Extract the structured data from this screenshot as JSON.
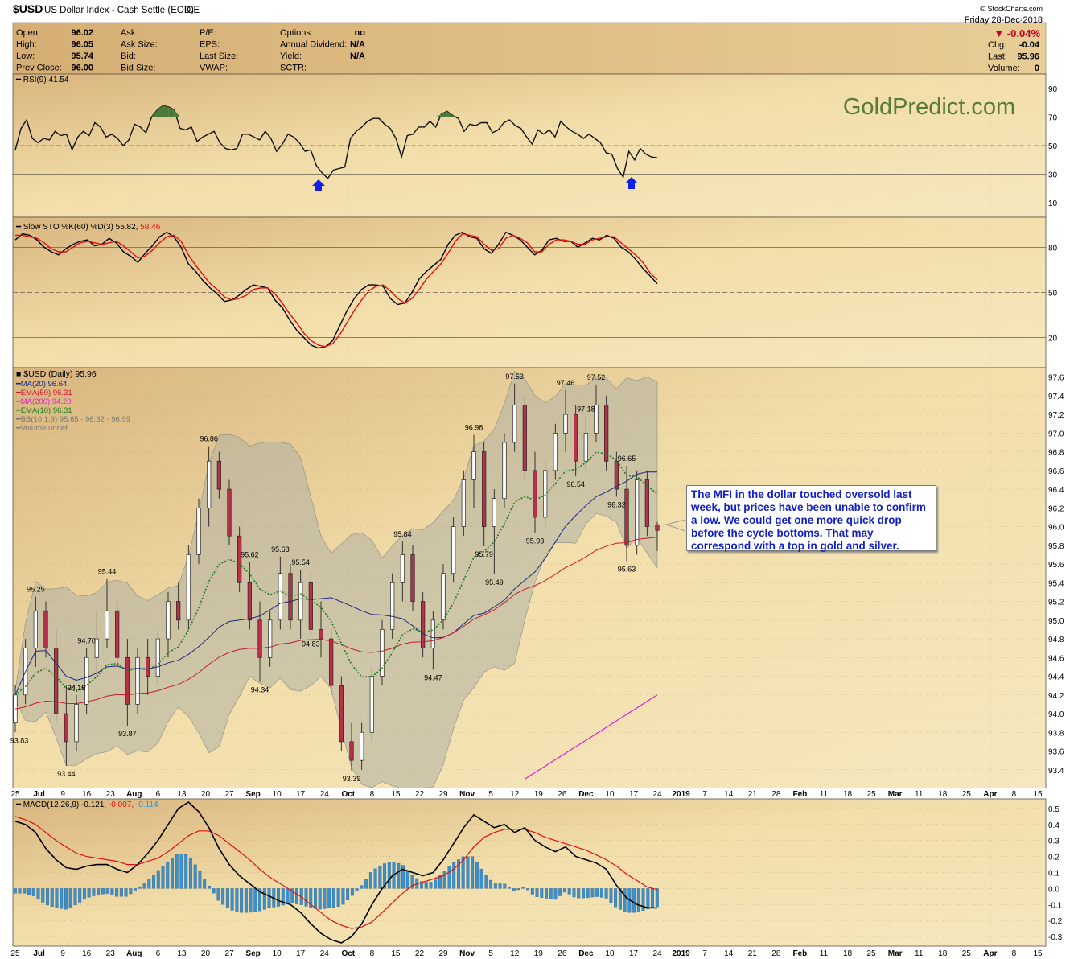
{
  "header": {
    "symbol": "$USD",
    "description": "US Dollar Index - Cash Settle (EOD)",
    "exchange": "ICE",
    "copyright": "© StockCharts.com",
    "date": "Friday  28-Dec-2018",
    "change_pct": "▼ -0.04%",
    "change_pct_color": "#c00020",
    "quote_left": [
      {
        "label": "Open:",
        "value": "96.02"
      },
      {
        "label": "High:",
        "value": "96.05"
      },
      {
        "label": "Low:",
        "value": "95.74"
      },
      {
        "label": "Prev Close:",
        "value": "96.00"
      }
    ],
    "quote_mid": [
      "Ask:",
      "Ask Size:",
      "Bid:",
      "Bid Size:"
    ],
    "quote_mid2": [
      "P/E:",
      "EPS:",
      "Last Size:",
      "VWAP:"
    ],
    "quote_right": [
      {
        "label": "Options:",
        "value": "no"
      },
      {
        "label": "Annual Dividend:",
        "value": "N/A"
      },
      {
        "label": "Yield:",
        "value": "N/A"
      },
      {
        "label": "SCTR:",
        "value": ""
      }
    ],
    "quote_far": [
      {
        "label": "Chg:",
        "value": "-0.04"
      },
      {
        "label": "Last:",
        "value": "95.96"
      },
      {
        "label": "Volume:",
        "value": "0"
      }
    ]
  },
  "watermark": "GoldPredict.com",
  "annotation": "The MFI in the dollar touched oversold last week, but prices have been unable to confirm a low. We could get one more quick drop before the cycle bottoms. That may correspond with a top in gold and silver.",
  "colors": {
    "background": "#f0dca8",
    "candle_up": "#ffffff",
    "candle_down": "#b8314a",
    "ma20": "#1c2a80",
    "ema50": "#c81a2a",
    "ma200": "#e020c8",
    "ema10": "#1e7a1e",
    "bollinger_fill": "#aeb0a4",
    "macd_hist": "#3b8fcc",
    "arrow": "#1020e8"
  },
  "chart_data": [
    {
      "type": "line",
      "panel": "rsi",
      "title": "RSI(9) 41.54",
      "ylim": [
        0,
        100
      ],
      "y_ticks": [
        10,
        30,
        50,
        70,
        90
      ],
      "guides": [
        30,
        50,
        70
      ],
      "series": [
        {
          "name": "RSI(9)",
          "values": [
            47,
            62,
            68,
            55,
            52,
            55,
            54,
            60,
            57,
            58,
            47,
            56,
            60,
            57,
            66,
            63,
            56,
            58,
            55,
            50,
            54,
            65,
            63,
            59,
            70,
            75,
            78,
            77,
            75,
            62,
            61,
            63,
            53,
            56,
            58,
            60,
            52,
            48,
            47,
            48,
            58,
            58,
            56,
            54,
            60,
            55,
            46,
            51,
            58,
            56,
            52,
            46,
            47,
            36,
            31,
            27,
            33,
            34,
            35,
            55,
            60,
            63,
            67,
            69,
            69,
            65,
            62,
            55,
            42,
            57,
            58,
            63,
            63,
            67,
            63,
            72,
            74,
            71,
            69,
            60,
            65,
            64,
            66,
            66,
            59,
            61,
            66,
            68,
            64,
            62,
            56,
            51,
            61,
            58,
            61,
            56,
            67,
            63,
            60,
            58,
            55,
            58,
            55,
            52,
            45,
            44,
            34,
            28,
            46,
            40,
            48,
            44,
            42,
            41.54
          ]
        }
      ]
    },
    {
      "type": "line",
      "panel": "slow_stochastic",
      "title": "Slow STO %K(60) %D(3) 55.82, 58.46",
      "ylim": [
        0,
        100
      ],
      "y_ticks": [
        20,
        50,
        80
      ],
      "guides": [
        20,
        50,
        80
      ],
      "series": [
        {
          "name": "%K(60)",
          "values": [
            85,
            89,
            88,
            85,
            80,
            77,
            75,
            79,
            82,
            84,
            85,
            81,
            82,
            86,
            83,
            77,
            74,
            70,
            76,
            81,
            87,
            90,
            87,
            80,
            69,
            64,
            58,
            53,
            49,
            44,
            45,
            48,
            52,
            55,
            54,
            53,
            45,
            40,
            32,
            25,
            20,
            15,
            13,
            14,
            18,
            28,
            38,
            46,
            52,
            55,
            55,
            54,
            46,
            42,
            43,
            50,
            59,
            64,
            68,
            72,
            82,
            88,
            90,
            87,
            86,
            79,
            76,
            82,
            90,
            88,
            85,
            80,
            75,
            78,
            85,
            86,
            84,
            84,
            80,
            83,
            86,
            85,
            88,
            86,
            80,
            77,
            72,
            66,
            61,
            55.82
          ]
        },
        {
          "name": "%D(3)",
          "values": [
            88,
            88,
            87,
            86,
            83,
            79,
            77,
            77,
            80,
            83,
            84,
            83,
            82,
            83,
            84,
            81,
            77,
            73,
            74,
            78,
            83,
            87,
            88,
            84,
            75,
            68,
            62,
            56,
            52,
            47,
            45,
            46,
            48,
            52,
            53,
            53,
            49,
            43,
            36,
            30,
            23,
            18,
            15,
            14,
            16,
            22,
            30,
            38,
            45,
            51,
            54,
            55,
            51,
            46,
            43,
            46,
            52,
            59,
            64,
            69,
            76,
            84,
            89,
            88,
            87,
            82,
            78,
            79,
            86,
            88,
            86,
            83,
            77,
            77,
            82,
            85,
            85,
            84,
            82,
            82,
            85,
            86,
            87,
            87,
            83,
            79,
            75,
            70,
            63,
            58.46
          ]
        }
      ]
    },
    {
      "type": "line",
      "panel": "price",
      "title": "$USD (Daily) 95.96",
      "ylim": [
        93.2,
        97.7
      ],
      "y_ticks": [
        93.4,
        93.6,
        93.8,
        94.0,
        94.2,
        94.4,
        94.6,
        94.8,
        95.0,
        95.2,
        95.4,
        95.6,
        95.8,
        96.0,
        96.2,
        96.4,
        96.6,
        96.8,
        97.0,
        97.2,
        97.4,
        97.6
      ],
      "legend": [
        {
          "name": "MA(20) 96.64",
          "color": "#1c2a80"
        },
        {
          "name": "EMA(50) 96.31",
          "color": "#c81a2a"
        },
        {
          "name": "MA(200) 94.20",
          "color": "#e020c8"
        },
        {
          "name": "EMA(10) 96.31",
          "color": "#1e7a1e"
        },
        {
          "name": "BB(10,1.9) 95.65 - 96.32 - 96.99",
          "color": "#7a7a70"
        },
        {
          "name": "Volume undef",
          "color": "#7a7a70"
        }
      ],
      "candles": [
        {
          "o": 93.9,
          "h": 94.3,
          "l": 93.8,
          "c": 94.2
        },
        {
          "o": 94.2,
          "h": 94.8,
          "l": 94.1,
          "c": 94.7
        },
        {
          "o": 94.7,
          "h": 95.25,
          "l": 94.5,
          "c": 95.1
        },
        {
          "o": 95.1,
          "h": 95.2,
          "l": 94.6,
          "c": 94.7
        },
        {
          "o": 94.7,
          "h": 94.9,
          "l": 93.9,
          "c": 94.0
        },
        {
          "o": 94.0,
          "h": 94.3,
          "l": 93.44,
          "c": 93.7
        },
        {
          "o": 93.7,
          "h": 94.2,
          "l": 93.6,
          "c": 94.1
        },
        {
          "o": 94.1,
          "h": 94.7,
          "l": 94.0,
          "c": 94.6
        },
        {
          "o": 94.6,
          "h": 95.1,
          "l": 94.4,
          "c": 94.8
        },
        {
          "o": 94.8,
          "h": 95.44,
          "l": 94.7,
          "c": 95.1
        },
        {
          "o": 95.1,
          "h": 95.2,
          "l": 94.5,
          "c": 94.6
        },
        {
          "o": 94.6,
          "h": 94.8,
          "l": 93.87,
          "c": 94.1
        },
        {
          "o": 94.1,
          "h": 94.7,
          "l": 94.0,
          "c": 94.6
        },
        {
          "o": 94.6,
          "h": 94.8,
          "l": 94.2,
          "c": 94.4
        },
        {
          "o": 94.4,
          "h": 94.9,
          "l": 94.3,
          "c": 94.8
        },
        {
          "o": 94.8,
          "h": 95.3,
          "l": 94.6,
          "c": 95.2
        },
        {
          "o": 95.2,
          "h": 95.4,
          "l": 94.9,
          "c": 95.0
        },
        {
          "o": 95.0,
          "h": 95.8,
          "l": 94.9,
          "c": 95.7
        },
        {
          "o": 95.7,
          "h": 96.3,
          "l": 95.6,
          "c": 96.2
        },
        {
          "o": 96.2,
          "h": 96.86,
          "l": 96.0,
          "c": 96.7
        },
        {
          "o": 96.7,
          "h": 96.8,
          "l": 96.3,
          "c": 96.4
        },
        {
          "o": 96.4,
          "h": 96.5,
          "l": 95.8,
          "c": 95.9
        },
        {
          "o": 95.9,
          "h": 96.0,
          "l": 95.3,
          "c": 95.4
        },
        {
          "o": 95.4,
          "h": 95.62,
          "l": 94.9,
          "c": 95.0
        },
        {
          "o": 95.0,
          "h": 95.2,
          "l": 94.34,
          "c": 94.6
        },
        {
          "o": 94.6,
          "h": 95.1,
          "l": 94.5,
          "c": 95.0
        },
        {
          "o": 95.0,
          "h": 95.68,
          "l": 94.9,
          "c": 95.5
        },
        {
          "o": 95.5,
          "h": 95.6,
          "l": 94.9,
          "c": 95.0
        },
        {
          "o": 95.0,
          "h": 95.54,
          "l": 94.8,
          "c": 95.4
        },
        {
          "o": 95.4,
          "h": 95.5,
          "l": 94.83,
          "c": 94.9
        },
        {
          "o": 94.9,
          "h": 95.2,
          "l": 94.6,
          "c": 94.8
        },
        {
          "o": 94.8,
          "h": 94.9,
          "l": 94.2,
          "c": 94.3
        },
        {
          "o": 94.3,
          "h": 94.4,
          "l": 93.6,
          "c": 93.7
        },
        {
          "o": 93.7,
          "h": 93.9,
          "l": 93.39,
          "c": 93.5
        },
        {
          "o": 93.5,
          "h": 93.9,
          "l": 93.4,
          "c": 93.8
        },
        {
          "o": 93.8,
          "h": 94.5,
          "l": 93.7,
          "c": 94.4
        },
        {
          "o": 94.4,
          "h": 95.0,
          "l": 94.3,
          "c": 94.9
        },
        {
          "o": 94.9,
          "h": 95.5,
          "l": 94.8,
          "c": 95.4
        },
        {
          "o": 95.4,
          "h": 95.84,
          "l": 95.2,
          "c": 95.7
        },
        {
          "o": 95.7,
          "h": 95.8,
          "l": 95.1,
          "c": 95.2
        },
        {
          "o": 95.2,
          "h": 95.3,
          "l": 94.6,
          "c": 94.7
        },
        {
          "o": 94.7,
          "h": 95.1,
          "l": 94.47,
          "c": 95.0
        },
        {
          "o": 95.0,
          "h": 95.6,
          "l": 94.9,
          "c": 95.5
        },
        {
          "o": 95.5,
          "h": 96.1,
          "l": 95.4,
          "c": 96.0
        },
        {
          "o": 96.0,
          "h": 96.6,
          "l": 95.9,
          "c": 96.5
        },
        {
          "o": 96.5,
          "h": 96.98,
          "l": 96.2,
          "c": 96.8
        },
        {
          "o": 96.8,
          "h": 96.9,
          "l": 95.79,
          "c": 96.0
        },
        {
          "o": 96.0,
          "h": 96.4,
          "l": 95.49,
          "c": 96.3
        },
        {
          "o": 96.3,
          "h": 97.0,
          "l": 96.2,
          "c": 96.9
        },
        {
          "o": 96.9,
          "h": 97.53,
          "l": 96.8,
          "c": 97.3
        },
        {
          "o": 97.3,
          "h": 97.4,
          "l": 96.5,
          "c": 96.6
        },
        {
          "o": 96.6,
          "h": 96.8,
          "l": 95.93,
          "c": 96.1
        },
        {
          "o": 96.1,
          "h": 96.7,
          "l": 96.0,
          "c": 96.6
        },
        {
          "o": 96.6,
          "h": 97.1,
          "l": 96.5,
          "c": 97.0
        },
        {
          "o": 97.0,
          "h": 97.46,
          "l": 96.8,
          "c": 97.2
        },
        {
          "o": 97.2,
          "h": 97.3,
          "l": 96.54,
          "c": 96.7
        },
        {
          "o": 96.7,
          "h": 97.18,
          "l": 96.6,
          "c": 97.0
        },
        {
          "o": 97.0,
          "h": 97.52,
          "l": 96.9,
          "c": 97.3
        },
        {
          "o": 97.3,
          "h": 97.4,
          "l": 96.6,
          "c": 96.7
        },
        {
          "o": 96.7,
          "h": 96.8,
          "l": 96.32,
          "c": 96.4
        },
        {
          "o": 96.4,
          "h": 96.65,
          "l": 95.63,
          "c": 95.8
        },
        {
          "o": 95.8,
          "h": 96.6,
          "l": 95.7,
          "c": 96.5
        },
        {
          "o": 96.5,
          "h": 96.6,
          "l": 95.9,
          "c": 96.0
        },
        {
          "o": 96.02,
          "h": 96.05,
          "l": 95.74,
          "c": 95.96
        }
      ],
      "price_labels": [
        "97.53",
        "97.46",
        "97.52",
        "97.18",
        "96.98",
        "96.86",
        "96.65",
        "96.54",
        "96.32",
        "95.93",
        "95.84",
        "95.79",
        "95.68",
        "95.62",
        "95.54",
        "95.49",
        "95.44",
        "95.25",
        "95.63",
        "94.83",
        "94.70",
        "94.47",
        "94.34",
        "94.19",
        "94.15",
        "93.87",
        "93.83",
        "93.44",
        "93.39"
      ]
    },
    {
      "type": "bar",
      "panel": "macd",
      "title": "MACD(12,26,9) -0.121, -0.007, -0.114",
      "ylim": [
        -0.36,
        0.56
      ],
      "y_ticks": [
        -0.3,
        -0.2,
        -0.1,
        0.0,
        0.1,
        0.2,
        0.3,
        0.4,
        0.5
      ],
      "series": [
        {
          "name": "MACD",
          "values": [
            0.42,
            0.4,
            0.35,
            0.25,
            0.18,
            0.13,
            0.12,
            0.14,
            0.15,
            0.15,
            0.12,
            0.1,
            0.15,
            0.22,
            0.3,
            0.4,
            0.5,
            0.54,
            0.48,
            0.38,
            0.25,
            0.15,
            0.08,
            0.03,
            -0.02,
            -0.05,
            -0.08,
            -0.1,
            -0.15,
            -0.22,
            -0.28,
            -0.32,
            -0.34,
            -0.3,
            -0.22,
            -0.1,
            0.0,
            0.08,
            0.12,
            0.1,
            0.08,
            0.1,
            0.18,
            0.28,
            0.38,
            0.46,
            0.42,
            0.38,
            0.4,
            0.35,
            0.38,
            0.3,
            0.26,
            0.23,
            0.26,
            0.2,
            0.18,
            0.16,
            0.12,
            0.02,
            -0.06,
            -0.1,
            -0.12,
            -0.121
          ]
        },
        {
          "name": "Signal",
          "values": [
            0.45,
            0.43,
            0.4,
            0.35,
            0.3,
            0.26,
            0.22,
            0.2,
            0.19,
            0.18,
            0.17,
            0.15,
            0.15,
            0.17,
            0.19,
            0.23,
            0.28,
            0.33,
            0.36,
            0.36,
            0.33,
            0.28,
            0.23,
            0.18,
            0.12,
            0.07,
            0.03,
            -0.01,
            -0.05,
            -0.1,
            -0.15,
            -0.2,
            -0.23,
            -0.25,
            -0.24,
            -0.21,
            -0.15,
            -0.09,
            -0.03,
            0.02,
            0.04,
            0.06,
            0.08,
            0.12,
            0.18,
            0.26,
            0.32,
            0.35,
            0.37,
            0.37,
            0.37,
            0.35,
            0.32,
            0.3,
            0.28,
            0.26,
            0.24,
            0.21,
            0.18,
            0.14,
            0.09,
            0.05,
            0.01,
            -0.007
          ]
        }
      ]
    }
  ],
  "x_axis": {
    "labels": [
      "25",
      "Jul",
      "9",
      "16",
      "23",
      "Aug",
      "6",
      "13",
      "20",
      "27",
      "Sep",
      "10",
      "17",
      "24",
      "Oct",
      "8",
      "15",
      "22",
      "29",
      "Nov",
      "5",
      "12",
      "19",
      "26",
      "Dec",
      "10",
      "17",
      "24",
      "2019",
      "7",
      "14",
      "21",
      "28",
      "Feb",
      "11",
      "18",
      "25",
      "Mar",
      "11",
      "18",
      "25",
      "Apr",
      "8",
      "15"
    ],
    "bold": [
      "Jul",
      "Aug",
      "Sep",
      "Oct",
      "Nov",
      "Dec",
      "2019",
      "Feb",
      "Mar",
      "Apr"
    ]
  }
}
